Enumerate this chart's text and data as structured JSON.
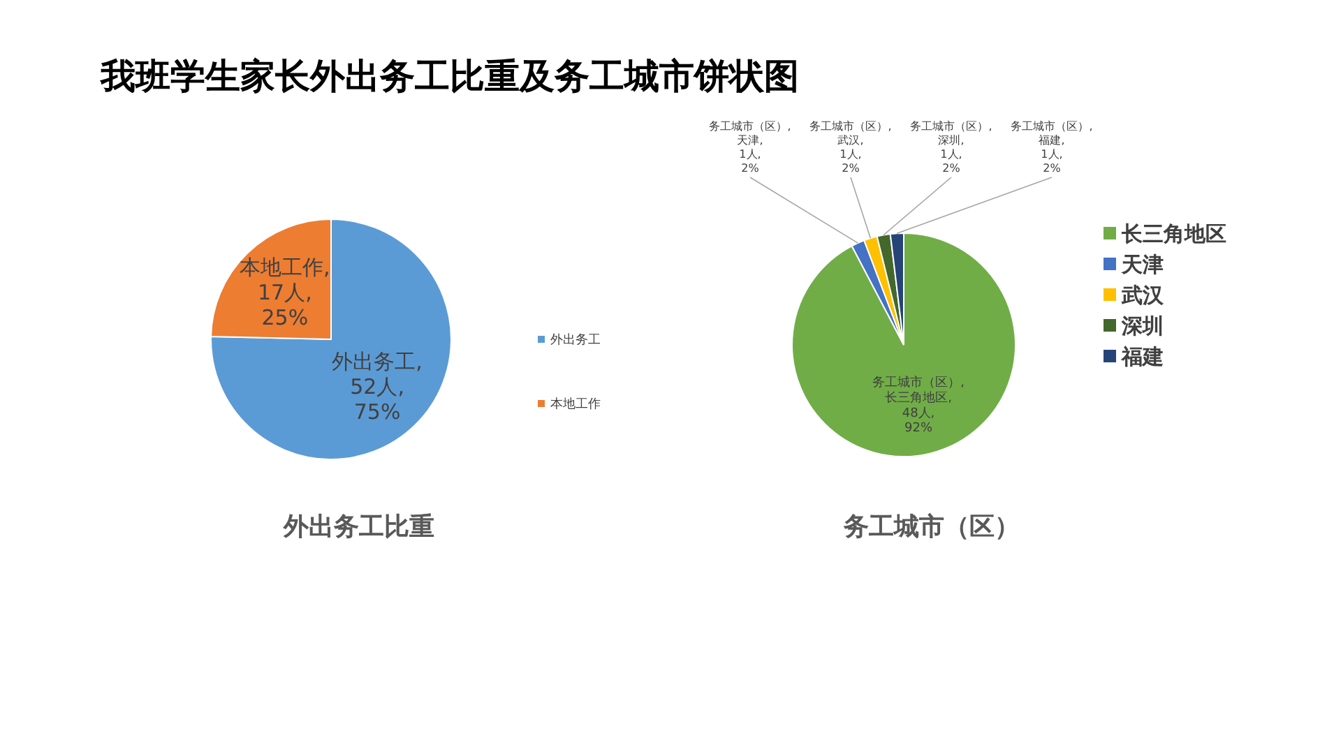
{
  "chart_data": [
    {
      "type": "pie",
      "title": "我班学生家长外出务工比重及务工城市饼状图",
      "xlabel": "外出务工比重",
      "categories": [
        "外出务工",
        "本地工作"
      ],
      "values": [
        52,
        17
      ],
      "colors": [
        "#5b9bd5",
        "#ed7d31"
      ],
      "value_labels": [
        "外出务工, 52人, 75%",
        "本地工作, 17人, 25%"
      ],
      "legend": "right"
    },
    {
      "type": "pie",
      "xlabel": "务工城市（区）",
      "categories": [
        "长三角地区",
        "天津",
        "武汉",
        "深圳",
        "福建"
      ],
      "values": [
        48,
        1,
        1,
        1,
        1
      ],
      "colors": [
        "#70ad47",
        "#4472c4",
        "#ffc000",
        "#43682b",
        "#264478"
      ],
      "value_labels": [
        "务工城市（区）, 长三角地区, 48人, 92%",
        "务工城市（区）, 天津, 1人, 2%",
        "务工城市（区）, 武汉, 1人, 2%",
        "务工城市（区）, 深圳, 1人, 2%",
        "务工城市（区）, 福建, 1人, 2%"
      ],
      "legend": "right"
    }
  ]
}
